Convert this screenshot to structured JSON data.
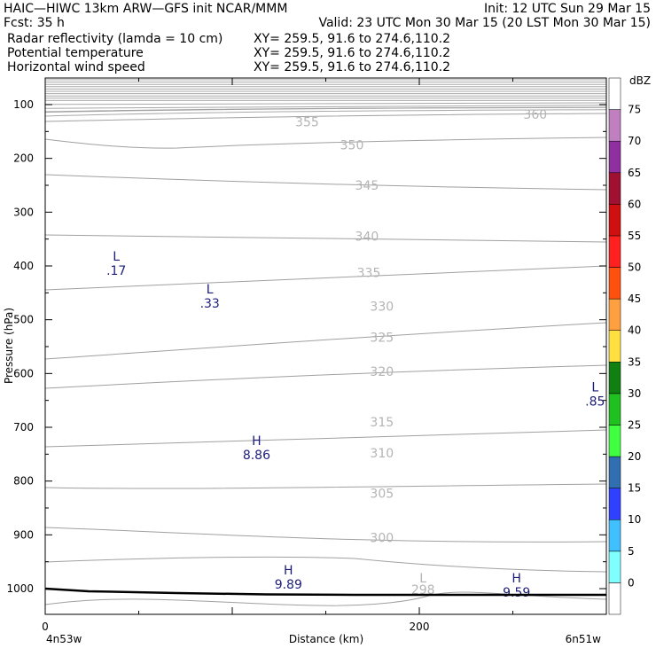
{
  "header": {
    "line1_left": "HAIC—HIWC 13km ARW—GFS init    NCAR/MMM",
    "line1_right": "Init: 12 UTC Sun 29 Mar 15",
    "line2_left": "Fcst:    35 h",
    "line2_right": "Valid: 23 UTC Mon 30 Mar 15 (20 LST Mon 30 Mar 15)",
    "fields": [
      {
        "name": "Radar reflectivity (lamda = 10 cm)",
        "xy": "XY= 259.5, 91.6 to 274.6,110.2",
        "color": "#000000"
      },
      {
        "name": "Potential temperature",
        "xy": "XY= 259.5, 91.6 to 274.6,110.2",
        "color": "#c8c8c8"
      },
      {
        "name": "Horizontal wind speed",
        "xy": "XY= 259.5, 91.6 to 274.6,110.2",
        "color": "#1c1c7a"
      }
    ]
  },
  "chart_data": {
    "type": "contour cross-section",
    "xlabel": "Distance (km)",
    "ylabel": "Pressure (hPa)",
    "x_ticks": [
      0,
      200
    ],
    "x_endpoints": [
      "4n53w",
      "6n51w"
    ],
    "xlim": [
      0,
      300
    ],
    "y_ticks": [
      100,
      200,
      300,
      400,
      500,
      600,
      700,
      800,
      900,
      1000
    ],
    "ylim": [
      1050,
      50
    ],
    "theta_labels": [
      {
        "text": "360",
        "x": 262,
        "p": 118
      },
      {
        "text": "355",
        "x": 140,
        "p": 132
      },
      {
        "text": "350",
        "x": 164,
        "p": 175
      },
      {
        "text": "345",
        "x": 172,
        "p": 250
      },
      {
        "text": "340",
        "x": 172,
        "p": 345
      },
      {
        "text": "335",
        "x": 173,
        "p": 412
      },
      {
        "text": "330",
        "x": 180,
        "p": 475
      },
      {
        "text": "325",
        "x": 180,
        "p": 533
      },
      {
        "text": "320",
        "x": 180,
        "p": 596
      },
      {
        "text": "315",
        "x": 180,
        "p": 690
      },
      {
        "text": "310",
        "x": 180,
        "p": 748
      },
      {
        "text": "305",
        "x": 180,
        "p": 823
      },
      {
        "text": "300",
        "x": 180,
        "p": 905
      },
      {
        "text": "298",
        "x": 202,
        "p": 1002
      }
    ],
    "theta_extrema": [
      {
        "type": "L",
        "value": "298",
        "x": 202,
        "p": 980
      }
    ],
    "wind_extrema": [
      {
        "type": "L",
        "value": ".17",
        "x": 38,
        "p": 382
      },
      {
        "type": "L",
        "value": ".33",
        "x": 88,
        "p": 443
      },
      {
        "type": "L",
        "value": ".85",
        "x": 294,
        "p": 625
      },
      {
        "type": "H",
        "value": "8.86",
        "x": 113,
        "p": 725
      },
      {
        "type": "H",
        "value": "9.89",
        "x": 130,
        "p": 965
      },
      {
        "type": "H",
        "value": "9.59",
        "x": 252,
        "p": 980
      }
    ],
    "colorbar": {
      "unit": "dBZ",
      "levels": [
        0,
        5,
        10,
        15,
        20,
        25,
        30,
        35,
        40,
        45,
        50,
        55,
        60,
        65,
        70,
        75
      ],
      "colors": [
        "#ffffff",
        "#80ffff",
        "#40c0ff",
        "#3040ff",
        "#3070b0",
        "#40ff40",
        "#20c020",
        "#108010",
        "#ffe040",
        "#ffa040",
        "#ff5010",
        "#ff2020",
        "#d01010",
        "#a01030",
        "#9030a0",
        "#c080c0",
        "#ffffff"
      ]
    }
  }
}
